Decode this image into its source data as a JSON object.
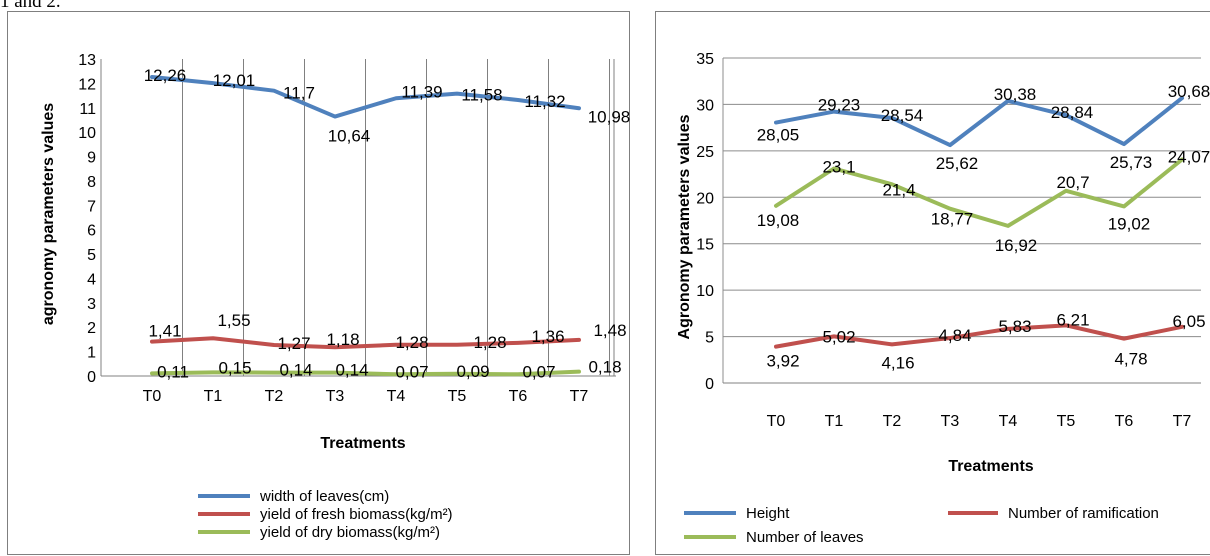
{
  "caption": "1 and 2.",
  "chart_data": [
    {
      "type": "line",
      "title": "",
      "xlabel": "Treatments",
      "ylabel": "agronomy parameters values",
      "categories": [
        "T0",
        "T1",
        "T2",
        "T3",
        "T4",
        "T5",
        "T6",
        "T7"
      ],
      "ylim": [
        0,
        13
      ],
      "yticks": [
        "0",
        "1",
        "2",
        "3",
        "4",
        "5",
        "6",
        "7",
        "8",
        "9",
        "10",
        "11",
        "12",
        "13"
      ],
      "grid": "vertical",
      "legend_position": "bottom",
      "series": [
        {
          "name": "width of leaves(cm)",
          "color": "#4f81bd",
          "values": [
            12.26,
            12.01,
            11.7,
            10.64,
            11.39,
            11.58,
            11.32,
            10.98
          ],
          "labels": [
            "12,26",
            "12,01",
            "11,7",
            "10,64",
            "11,39",
            "11,58",
            "11,32",
            "10,98"
          ]
        },
        {
          "name": "yield of fresh biomass(kg/m²)",
          "color": "#c0504d",
          "values": [
            1.41,
            1.55,
            1.27,
            1.18,
            1.28,
            1.28,
            1.36,
            1.48
          ],
          "labels": [
            "1,41",
            "1,55",
            "1,27",
            "1,18",
            "1,28",
            "1,28",
            "1,36",
            "1,48"
          ]
        },
        {
          "name": "yield of dry biomass(kg/m²)",
          "color": "#9bbb59",
          "values": [
            0.11,
            0.15,
            0.14,
            0.14,
            0.07,
            0.09,
            0.07,
            0.18
          ],
          "labels": [
            "0,11",
            "0,15",
            "0,14",
            "0,14",
            "0,07",
            "0,09",
            "0,07",
            "0,18"
          ]
        }
      ]
    },
    {
      "type": "line",
      "title": "",
      "xlabel": "Treatments",
      "ylabel": "Agronomy parameters values",
      "categories": [
        "T0",
        "T1",
        "T2",
        "T3",
        "T4",
        "T5",
        "T6",
        "T7"
      ],
      "ylim": [
        0,
        35
      ],
      "yticks": [
        "0",
        "5",
        "10",
        "15",
        "20",
        "25",
        "30",
        "35"
      ],
      "grid": "horizontal",
      "legend_position": "bottom",
      "series": [
        {
          "name": "Height",
          "color": "#4f81bd",
          "values": [
            28.05,
            29.23,
            28.54,
            25.62,
            30.38,
            28.84,
            25.73,
            30.68
          ],
          "labels": [
            "28,05",
            "29,23",
            "28,54",
            "25,62",
            "30,38",
            "28,84",
            "25,73",
            "30,68"
          ]
        },
        {
          "name": "Number of ramification",
          "color": "#c0504d",
          "values": [
            3.92,
            5.02,
            4.16,
            4.84,
            5.83,
            6.21,
            4.78,
            6.05
          ],
          "labels": [
            "3,92",
            "5,02",
            "4,16",
            "4,84",
            "5,83",
            "6,21",
            "4,78",
            "6,05"
          ]
        },
        {
          "name": "Number of leaves",
          "color": "#9bbb59",
          "values": [
            19.08,
            23.1,
            21.4,
            18.77,
            16.92,
            20.7,
            19.02,
            24.07
          ],
          "labels": [
            "19,08",
            "23,1",
            "21,4",
            "18,77",
            "16,92",
            "20,7",
            "19,02",
            "24,07"
          ]
        }
      ]
    }
  ]
}
